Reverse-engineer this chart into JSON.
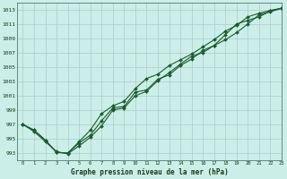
{
  "title": "Graphe pression niveau de la mer (hPa)",
  "bg_color": "#cceee8",
  "grid_color": "#aacccc",
  "line_color": "#1a5c2a",
  "xlim": [
    -0.5,
    23
  ],
  "ylim": [
    992,
    1014
  ],
  "yticks": [
    993,
    995,
    997,
    999,
    1001,
    1003,
    1005,
    1007,
    1009,
    1011,
    1013
  ],
  "xticks": [
    0,
    1,
    2,
    3,
    4,
    5,
    6,
    7,
    8,
    9,
    10,
    11,
    12,
    13,
    14,
    15,
    16,
    17,
    18,
    19,
    20,
    21,
    22,
    23
  ],
  "line1_x": [
    0,
    1,
    2,
    3,
    4,
    5,
    6,
    7,
    8,
    9,
    10,
    11,
    12,
    13,
    14,
    15,
    16,
    17,
    18,
    19,
    20,
    21,
    22,
    23
  ],
  "line1_y": [
    997.0,
    996.2,
    994.8,
    993.1,
    993.0,
    994.4,
    995.5,
    997.5,
    999.3,
    999.5,
    1001.5,
    1001.8,
    1003.3,
    1003.9,
    1005.2,
    1006.1,
    1007.3,
    1008.0,
    1009.5,
    1011.0,
    1011.5,
    1012.0,
    1012.8,
    1013.2
  ],
  "line2_x": [
    0,
    1,
    2,
    3,
    4,
    5,
    6,
    7,
    8,
    9,
    10,
    11,
    12,
    13,
    14,
    15,
    16,
    17,
    18,
    19,
    20,
    21,
    22,
    23
  ],
  "line2_y": [
    997.0,
    996.2,
    994.8,
    993.1,
    993.0,
    994.6,
    996.2,
    998.5,
    999.6,
    1000.2,
    1002.0,
    1003.4,
    1004.0,
    1005.2,
    1006.0,
    1006.8,
    1007.8,
    1008.8,
    1010.0,
    1010.8,
    1012.0,
    1012.5,
    1012.9,
    1013.2
  ],
  "line3_x": [
    0,
    1,
    2,
    3,
    4,
    5,
    6,
    7,
    8,
    9,
    10,
    11,
    12,
    13,
    14,
    15,
    16,
    17,
    18,
    19,
    20,
    21,
    22,
    23
  ],
  "line3_y": [
    997.0,
    996.0,
    994.6,
    993.2,
    992.9,
    994.0,
    995.2,
    996.8,
    999.0,
    999.3,
    1001.0,
    1001.6,
    1003.1,
    1004.2,
    1005.4,
    1006.5,
    1007.0,
    1008.0,
    1008.8,
    1009.8,
    1011.0,
    1012.3,
    1012.7,
    1013.2
  ]
}
